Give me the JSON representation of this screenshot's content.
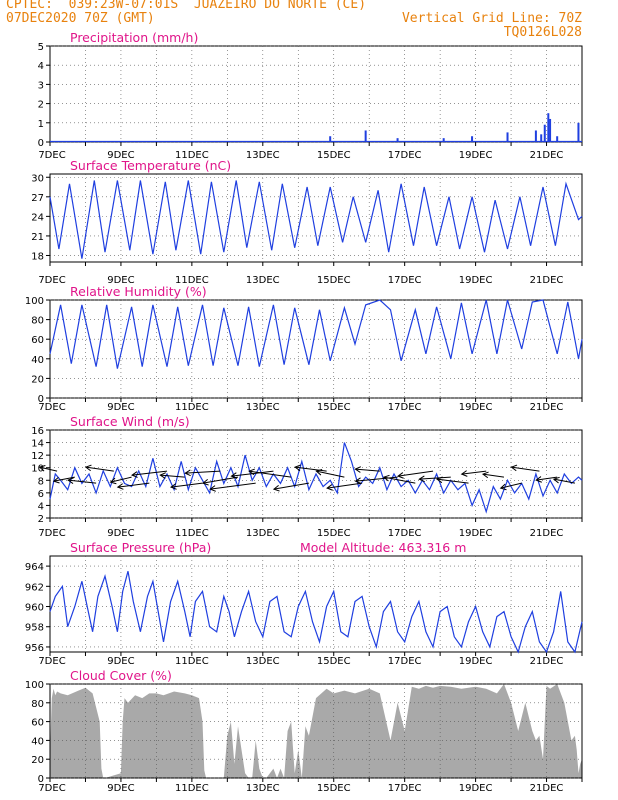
{
  "header": {
    "line1_left": "CPTEC:  039:23W-07:01S  JUAZEIRO DO NORTE (CE)",
    "line2_left": "07DEC2020 70Z (GMT)",
    "line2_right": "Vertical Grid Line: 70Z",
    "line3_right": "TQ0126L028"
  },
  "colors": {
    "header": "#e8820e",
    "title": "#e0158a",
    "line": "#1f3fe0",
    "cloud": "#a9a9a9",
    "grid": "#555555"
  },
  "x_axis": {
    "labels": [
      "7DEC",
      "9DEC",
      "11DEC",
      "13DEC",
      "15DEC",
      "17DEC",
      "19DEC",
      "21DEC"
    ]
  },
  "chart_data": [
    {
      "type": "bar",
      "title": "Precipitation (mm/h)",
      "ylim": [
        0,
        5
      ],
      "yticks": [
        0,
        1,
        2,
        3,
        4,
        5
      ],
      "x_days": [
        7,
        22
      ],
      "x": [
        10.2,
        11.8,
        14.9,
        15.9,
        16.8,
        18.1,
        18.9,
        19.9,
        20.7,
        20.85,
        20.95,
        21.05,
        21.1,
        21.3,
        21.9
      ],
      "values": [
        0.05,
        0.05,
        0.3,
        0.6,
        0.2,
        0.2,
        0.3,
        0.5,
        0.6,
        0.4,
        0.9,
        1.5,
        1.2,
        0.3,
        1.0
      ]
    },
    {
      "type": "line",
      "title": "Surface Temperature (nC)",
      "ylim": [
        17,
        30.5
      ],
      "yticks": [
        18,
        21,
        24,
        27,
        30
      ],
      "x_days": [
        7,
        22
      ],
      "x": [
        7.0,
        7.25,
        7.55,
        7.9,
        8.25,
        8.55,
        8.9,
        9.25,
        9.55,
        9.9,
        10.25,
        10.55,
        10.9,
        11.25,
        11.55,
        11.9,
        12.25,
        12.55,
        12.9,
        13.25,
        13.55,
        13.9,
        14.25,
        14.55,
        14.9,
        15.25,
        15.55,
        15.9,
        16.25,
        16.55,
        16.9,
        17.25,
        17.55,
        17.9,
        18.25,
        18.55,
        18.9,
        19.25,
        19.55,
        19.9,
        20.25,
        20.55,
        20.9,
        21.25,
        21.55,
        21.9,
        22.0
      ],
      "values": [
        27.0,
        19.0,
        29.0,
        17.5,
        29.5,
        18.5,
        29.5,
        18.8,
        29.5,
        18.2,
        29.3,
        18.8,
        29.5,
        18.2,
        29.3,
        18.5,
        29.5,
        19.2,
        29.3,
        18.8,
        29.0,
        19.2,
        28.5,
        19.5,
        28.5,
        20.0,
        27.0,
        20.0,
        28.0,
        18.5,
        29.0,
        19.5,
        28.5,
        19.5,
        27.0,
        19.0,
        27.0,
        18.5,
        26.5,
        19.0,
        27.0,
        19.5,
        28.5,
        19.5,
        29.0,
        23.5,
        24.0
      ]
    },
    {
      "type": "line",
      "title": "Relative Humidity (%)",
      "ylim": [
        0,
        100
      ],
      "yticks": [
        0,
        20,
        40,
        60,
        80,
        100
      ],
      "x_days": [
        7,
        22
      ],
      "x": [
        7.0,
        7.3,
        7.6,
        7.9,
        8.3,
        8.6,
        8.9,
        9.3,
        9.6,
        9.9,
        10.3,
        10.6,
        10.9,
        11.3,
        11.6,
        11.9,
        12.3,
        12.6,
        12.9,
        13.3,
        13.6,
        13.9,
        14.3,
        14.6,
        14.9,
        15.3,
        15.6,
        15.9,
        16.3,
        16.6,
        16.9,
        17.3,
        17.6,
        17.9,
        18.3,
        18.6,
        18.9,
        19.3,
        19.6,
        19.9,
        20.3,
        20.6,
        20.9,
        21.3,
        21.6,
        21.9,
        22.0
      ],
      "values": [
        45,
        95,
        35,
        95,
        32,
        95,
        30,
        93,
        32,
        95,
        32,
        93,
        33,
        95,
        33,
        92,
        33,
        93,
        32,
        95,
        34,
        92,
        34,
        90,
        38,
        92,
        55,
        95,
        100,
        90,
        38,
        90,
        45,
        93,
        40,
        97,
        45,
        100,
        45,
        100,
        50,
        98,
        100,
        45,
        98,
        40,
        60
      ]
    },
    {
      "type": "line",
      "title": "Surface Wind (m/s)",
      "ylim": [
        2,
        16
      ],
      "yticks": [
        2,
        4,
        6,
        8,
        10,
        12,
        14,
        16
      ],
      "x_days": [
        7,
        22
      ],
      "x": [
        7.0,
        7.15,
        7.3,
        7.5,
        7.7,
        7.9,
        8.1,
        8.3,
        8.5,
        8.7,
        8.9,
        9.1,
        9.3,
        9.5,
        9.7,
        9.9,
        10.1,
        10.3,
        10.5,
        10.7,
        10.9,
        11.1,
        11.3,
        11.5,
        11.7,
        11.9,
        12.1,
        12.3,
        12.5,
        12.7,
        12.9,
        13.1,
        13.3,
        13.5,
        13.7,
        13.9,
        14.1,
        14.3,
        14.5,
        14.7,
        14.9,
        15.1,
        15.3,
        15.5,
        15.7,
        15.9,
        16.1,
        16.3,
        16.5,
        16.7,
        16.9,
        17.1,
        17.3,
        17.5,
        17.7,
        17.9,
        18.1,
        18.3,
        18.5,
        18.7,
        18.9,
        19.1,
        19.3,
        19.5,
        19.7,
        19.9,
        20.1,
        20.3,
        20.5,
        20.7,
        20.9,
        21.1,
        21.3,
        21.5,
        21.7,
        21.9,
        22.0
      ],
      "values": [
        5,
        9,
        8,
        6.5,
        10,
        7.5,
        9,
        6,
        9.5,
        7,
        10,
        7.5,
        7,
        9.5,
        7,
        11.5,
        7,
        9,
        6.5,
        11,
        6.5,
        10,
        8,
        6,
        11,
        7.5,
        10,
        7,
        12,
        8,
        10,
        7,
        9,
        7.5,
        10,
        7,
        11,
        6.5,
        9,
        7,
        8,
        6,
        14,
        11,
        7,
        8.5,
        7.5,
        10,
        6.5,
        9,
        7,
        8,
        6,
        8,
        6.5,
        9,
        6,
        8,
        6.5,
        7.5,
        4,
        6.5,
        3,
        7,
        5,
        8,
        6,
        7.5,
        5,
        9,
        5.5,
        8,
        6,
        9,
        7.5,
        8.5,
        8
      ],
      "arrows_x": [
        7.2,
        7.7,
        8.3,
        8.8,
        9.3,
        9.8,
        10.3,
        10.8,
        11.3,
        11.8,
        12.3,
        12.8,
        13.3,
        13.8,
        14.3,
        14.8,
        15.3,
        15.8,
        16.3,
        16.8,
        17.3,
        17.8,
        18.3,
        18.8,
        19.3,
        19.8,
        20.3,
        20.8,
        21.3,
        21.8
      ],
      "arrows_dx": [
        0.5,
        0.6,
        0.8,
        0.8,
        0.6,
        0.9,
        1.0,
        0.7,
        0.9,
        1.0,
        1.0,
        1.3,
        1.2,
        1.2,
        1.0,
        0.9,
        0.8,
        1.0,
        0.7,
        1.2,
        0.9,
        1.0,
        0.9,
        0.9,
        0.7,
        0.6,
        0.6,
        0.8,
        0.6,
        0.6
      ],
      "arrows_dy": [
        -0.4,
        0.4,
        -0.3,
        -0.4,
        0.5,
        0.4,
        0.4,
        -0.2,
        0.4,
        0.2,
        0.6,
        0.6,
        0.5,
        -0.6,
        0.6,
        -0.4,
        -0.6,
        0.5,
        -0.2,
        0.4,
        -0.6,
        0.5,
        0.2,
        -0.4,
        0.3,
        -0.3,
        0.5,
        -0.4,
        0.3,
        -0.4
      ]
    },
    {
      "type": "line",
      "title": "Surface Pressure (hPa)",
      "annotation": "Model Altitude: 463.316 m",
      "ylim": [
        955.5,
        965
      ],
      "yticks": [
        956,
        958,
        960,
        962,
        964
      ],
      "x_days": [
        7,
        22
      ],
      "x": [
        7.0,
        7.15,
        7.35,
        7.5,
        7.7,
        7.9,
        8.05,
        8.2,
        8.35,
        8.55,
        8.75,
        8.9,
        9.05,
        9.2,
        9.35,
        9.55,
        9.75,
        9.9,
        10.05,
        10.2,
        10.4,
        10.6,
        10.8,
        10.95,
        11.1,
        11.3,
        11.5,
        11.7,
        11.9,
        12.05,
        12.2,
        12.4,
        12.6,
        12.8,
        13.0,
        13.2,
        13.4,
        13.6,
        13.8,
        14.0,
        14.2,
        14.4,
        14.6,
        14.8,
        15.0,
        15.2,
        15.4,
        15.6,
        15.8,
        16.0,
        16.2,
        16.4,
        16.6,
        16.8,
        17.0,
        17.2,
        17.4,
        17.6,
        17.8,
        18.0,
        18.2,
        18.4,
        18.6,
        18.8,
        19.0,
        19.2,
        19.4,
        19.6,
        19.8,
        20.0,
        20.2,
        20.4,
        20.6,
        20.8,
        21.0,
        21.2,
        21.4,
        21.6,
        21.8,
        22.0
      ],
      "values": [
        959.5,
        961,
        962,
        958,
        960,
        962.5,
        960,
        957.5,
        961,
        963,
        960,
        957.5,
        961.5,
        963.5,
        960.5,
        957.5,
        961,
        962.5,
        959.5,
        956.5,
        960.5,
        962.5,
        959.5,
        957,
        960.5,
        961.5,
        958,
        957.5,
        961,
        959.5,
        957,
        959.5,
        961.5,
        958.5,
        957,
        960.5,
        961,
        957.5,
        957,
        960,
        961.5,
        958.5,
        956.5,
        960,
        961.5,
        957.5,
        957,
        960.5,
        961,
        958,
        956,
        959.5,
        960.5,
        957.5,
        956.5,
        959,
        960.5,
        957.5,
        956,
        959.5,
        960,
        957,
        956,
        958.5,
        960,
        957.5,
        956,
        959,
        959.5,
        957,
        955.5,
        958,
        959.5,
        956.5,
        955.5,
        957.5,
        961.5,
        956.5,
        955.5,
        958.5
      ]
    },
    {
      "type": "area",
      "title": "Cloud Cover (%)",
      "ylim": [
        0,
        100
      ],
      "yticks": [
        0,
        20,
        40,
        60,
        80,
        100
      ],
      "x_days": [
        7,
        22
      ],
      "x": [
        7.0,
        7.05,
        7.1,
        7.15,
        7.2,
        7.3,
        7.5,
        7.8,
        8.0,
        8.2,
        8.4,
        8.45,
        8.5,
        8.55,
        9.0,
        9.05,
        9.1,
        9.2,
        9.4,
        9.6,
        9.8,
        10.0,
        10.2,
        10.5,
        10.8,
        11.0,
        11.2,
        11.3,
        11.35,
        11.4,
        11.9,
        12.0,
        12.1,
        12.2,
        12.3,
        12.4,
        12.5,
        12.6,
        12.7,
        12.8,
        12.9,
        13.0,
        13.1,
        13.2,
        13.3,
        13.4,
        13.5,
        13.6,
        13.7,
        13.8,
        13.9,
        14.0,
        14.1,
        14.2,
        14.3,
        14.5,
        14.8,
        15.0,
        15.3,
        15.6,
        16.0,
        16.3,
        16.6,
        16.8,
        17.0,
        17.2,
        17.4,
        17.6,
        17.8,
        18.0,
        18.3,
        18.6,
        19.0,
        19.3,
        19.6,
        19.8,
        20.0,
        20.2,
        20.4,
        20.6,
        20.7,
        20.8,
        20.9,
        21.0,
        21.1,
        21.3,
        21.5,
        21.7,
        21.8,
        21.85,
        21.9,
        21.95,
        22.0
      ],
      "values": [
        25,
        85,
        95,
        88,
        92,
        90,
        88,
        93,
        96,
        90,
        60,
        10,
        0,
        0,
        5,
        60,
        85,
        80,
        88,
        85,
        90,
        90,
        88,
        92,
        90,
        88,
        85,
        60,
        8,
        0,
        0,
        45,
        60,
        15,
        55,
        30,
        5,
        0,
        0,
        40,
        10,
        0,
        0,
        5,
        10,
        0,
        10,
        0,
        50,
        60,
        5,
        30,
        0,
        55,
        45,
        85,
        95,
        90,
        93,
        90,
        95,
        90,
        40,
        80,
        50,
        97,
        95,
        98,
        96,
        98,
        97,
        95,
        97,
        95,
        90,
        100,
        80,
        50,
        80,
        50,
        40,
        45,
        20,
        98,
        95,
        100,
        80,
        40,
        45,
        30,
        5,
        15,
        20
      ]
    }
  ]
}
